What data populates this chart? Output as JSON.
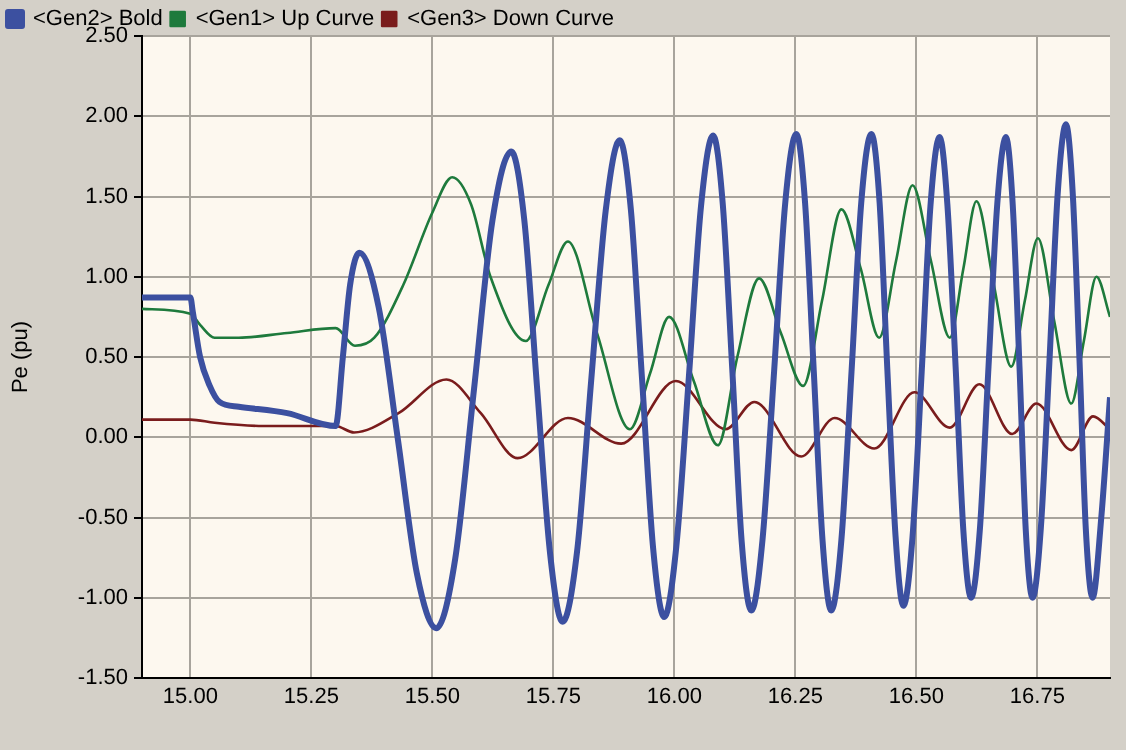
{
  "chart_data": {
    "type": "line",
    "ylabel": "Pe (pu)",
    "xlim": [
      14.9,
      16.9
    ],
    "xticks": [
      {
        "value": 15,
        "label": "15.00"
      },
      {
        "value": 15.25,
        "label": "15.25"
      },
      {
        "value": 15.5,
        "label": "15.50"
      },
      {
        "value": 15.75,
        "label": "15.75"
      },
      {
        "value": 16,
        "label": "16.00"
      },
      {
        "value": 16.25,
        "label": "16.25"
      },
      {
        "value": 16.5,
        "label": "16.50"
      },
      {
        "value": 16.75,
        "label": "16.75"
      }
    ],
    "ylim": [
      -1.5,
      2.5
    ],
    "yticks": [
      {
        "value": -1.5,
        "label": "-1.50"
      },
      {
        "value": -1,
        "label": "-1.00"
      },
      {
        "value": -0.5,
        "label": "-0.50"
      },
      {
        "value": 0,
        "label": "0.00"
      },
      {
        "value": 0.5,
        "label": "0.50"
      },
      {
        "value": 1,
        "label": "1.00"
      },
      {
        "value": 1.5,
        "label": "1.50"
      },
      {
        "value": 2,
        "label": "2.00"
      },
      {
        "value": 2.5,
        "label": "2.50"
      }
    ],
    "grid": true,
    "legend": "top",
    "marker": "none",
    "line_style": "solid",
    "series": [
      {
        "name": "<Gen2> Bold",
        "color": "#3c50a0",
        "x": [
          14.9,
          15.0,
          15.005,
          15.02,
          15.04,
          15.06,
          15.1,
          15.2,
          15.3,
          15.315,
          15.33,
          15.349,
          15.389,
          15.429,
          15.468,
          15.508,
          15.547,
          15.586,
          15.624,
          15.663,
          15.69,
          15.716,
          15.743,
          15.769,
          15.799,
          15.828,
          15.858,
          15.887,
          15.91,
          15.933,
          15.956,
          15.979,
          16.004,
          16.03,
          16.055,
          16.08,
          16.1,
          16.12,
          16.139,
          16.159,
          16.182,
          16.206,
          16.229,
          16.252,
          16.27,
          16.288,
          16.306,
          16.324,
          16.345,
          16.366,
          16.386,
          16.407,
          16.424,
          16.44,
          16.457,
          16.473,
          16.492,
          16.511,
          16.529,
          16.548,
          16.564,
          16.581,
          16.597,
          16.613,
          16.631,
          16.649,
          16.667,
          16.685,
          16.699,
          16.713,
          16.726,
          16.74,
          16.757,
          16.775,
          16.792,
          16.809,
          16.823,
          16.837,
          16.85,
          16.864,
          16.882,
          16.9
        ],
        "values": [
          0.87,
          0.87,
          0.78,
          0.5,
          0.32,
          0.22,
          0.19,
          0.15,
          0.07,
          0.5,
          0.95,
          1.15,
          0.81,
          -0.02,
          -0.85,
          -1.19,
          -0.76,
          0.3,
          1.35,
          1.78,
          1.35,
          0.32,
          -0.72,
          -1.15,
          -0.71,
          0.35,
          1.41,
          1.85,
          1.42,
          0.37,
          -0.69,
          -1.12,
          -0.68,
          0.38,
          1.44,
          1.88,
          1.45,
          0.4,
          -0.65,
          -1.08,
          -0.64,
          0.41,
          1.46,
          1.89,
          1.46,
          0.41,
          -0.64,
          -1.08,
          -0.64,
          0.41,
          1.46,
          1.89,
          1.46,
          0.42,
          -0.62,
          -1.05,
          -0.62,
          0.41,
          1.44,
          1.87,
          1.45,
          0.44,
          -0.58,
          -1.0,
          -0.58,
          0.44,
          1.45,
          1.87,
          1.45,
          0.44,
          -0.58,
          -1.0,
          -0.57,
          0.48,
          1.52,
          1.95,
          1.52,
          0.48,
          -0.57,
          -1.0,
          -0.5,
          0.25
        ]
      },
      {
        "name": "<Gen1> Up Curve",
        "color": "#1e7a3c",
        "x": [
          14.9,
          15.0,
          15.02,
          15.05,
          15.1,
          15.2,
          15.3,
          15.34,
          15.38,
          15.44,
          15.5,
          15.541,
          15.58,
          15.62,
          15.693,
          15.74,
          15.78,
          15.84,
          15.908,
          15.95,
          15.989,
          16.04,
          16.09,
          16.13,
          16.175,
          16.22,
          16.266,
          16.305,
          16.345,
          16.385,
          16.423,
          16.458,
          16.492,
          16.53,
          16.569,
          16.597,
          16.624,
          16.66,
          16.696,
          16.724,
          16.751,
          16.785,
          16.82,
          16.846,
          16.872,
          16.9
        ],
        "values": [
          0.8,
          0.77,
          0.7,
          0.62,
          0.62,
          0.65,
          0.68,
          0.57,
          0.62,
          0.95,
          1.4,
          1.62,
          1.45,
          1.0,
          0.6,
          0.95,
          1.22,
          0.65,
          0.05,
          0.4,
          0.75,
          0.35,
          -0.05,
          0.5,
          0.99,
          0.65,
          0.32,
          0.85,
          1.42,
          1.05,
          0.62,
          1.1,
          1.57,
          1.1,
          0.62,
          1.05,
          1.47,
          0.95,
          0.44,
          0.85,
          1.24,
          0.72,
          0.21,
          0.6,
          1.0,
          0.75
        ]
      },
      {
        "name": "<Gen3> Down Curve",
        "color": "#7a1c1c",
        "x": [
          14.9,
          15.0,
          15.05,
          15.15,
          15.3,
          15.338,
          15.43,
          15.529,
          15.6,
          15.676,
          15.78,
          15.89,
          16.003,
          16.106,
          16.165,
          16.262,
          16.331,
          16.413,
          16.496,
          16.569,
          16.63,
          16.698,
          16.748,
          16.82,
          16.865,
          16.9
        ],
        "values": [
          0.11,
          0.11,
          0.09,
          0.07,
          0.07,
          0.03,
          0.15,
          0.36,
          0.15,
          -0.13,
          0.12,
          -0.04,
          0.35,
          0.05,
          0.22,
          -0.12,
          0.12,
          -0.07,
          0.28,
          0.06,
          0.33,
          0.02,
          0.21,
          -0.08,
          0.13,
          0.05
        ]
      }
    ]
  }
}
